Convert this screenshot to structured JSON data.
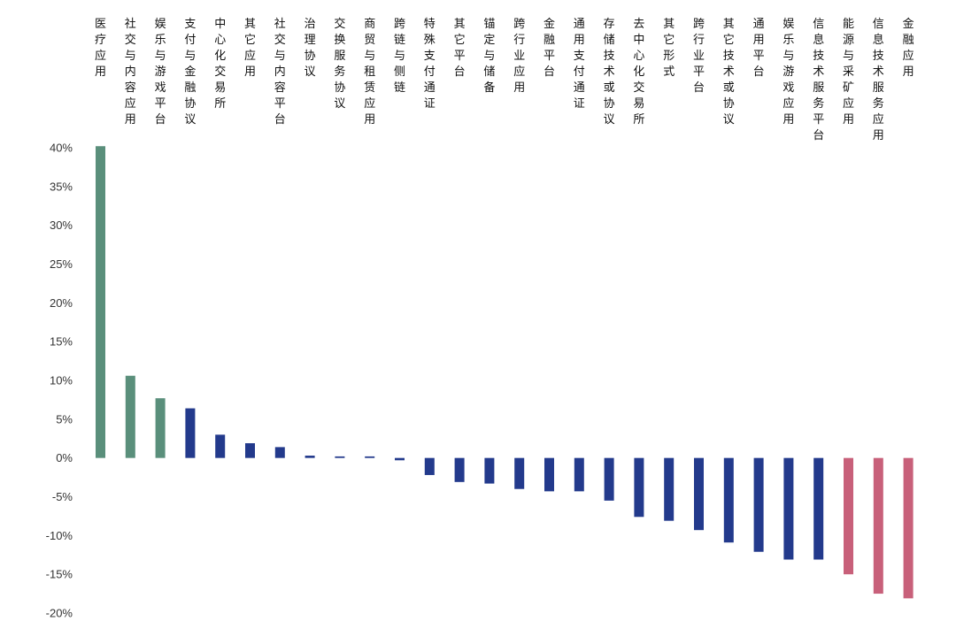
{
  "chart_data": {
    "type": "bar",
    "title": "",
    "xlabel": "",
    "ylabel": "",
    "ylim": [
      -20,
      40
    ],
    "yticks": [
      40,
      35,
      30,
      25,
      20,
      15,
      10,
      5,
      0,
      -5,
      -10,
      -15,
      -20
    ],
    "ytick_labels": [
      "40%",
      "35%",
      "30%",
      "25%",
      "20%",
      "15%",
      "10%",
      "5%",
      "0%",
      "-5%",
      "-10%",
      "-15%",
      "-20%"
    ],
    "categories": [
      "医疗应用",
      "社交与内容应用",
      "娱乐与游戏平台",
      "支付与金融协议",
      "中心化交易所",
      "其它应用",
      "社交与内容平台",
      "治理协议",
      "交换服务协议",
      "商贸与租赁应用",
      "跨链与侧链",
      "特殊支付通证",
      "其它平台",
      "锚定与储备",
      "跨行业应用",
      "金融平台",
      "通用支付通证",
      "存储技术或协议",
      "去中心化交易所",
      "其它形式",
      "跨行业平台",
      "其它技术或协议",
      "通用平台",
      "娱乐与游戏应用",
      "信息技术服务平台",
      "能源与采矿应用",
      "信息技术服务应用",
      "金融应用"
    ],
    "values": [
      40.2,
      10.6,
      7.7,
      6.4,
      3.0,
      1.9,
      1.4,
      0.3,
      0.2,
      0.2,
      -0.3,
      -2.2,
      -3.1,
      -3.3,
      -4.0,
      -4.3,
      -4.3,
      -5.5,
      -7.6,
      -8.1,
      -9.3,
      -10.9,
      -12.1,
      -13.1,
      -13.1,
      -15.0,
      -17.5,
      -18.1
    ],
    "bar_colors": [
      "#5a8f7b",
      "#5a8f7b",
      "#5a8f7b",
      "#233a8c",
      "#233a8c",
      "#233a8c",
      "#233a8c",
      "#233a8c",
      "#233a8c",
      "#233a8c",
      "#233a8c",
      "#233a8c",
      "#233a8c",
      "#233a8c",
      "#233a8c",
      "#233a8c",
      "#233a8c",
      "#233a8c",
      "#233a8c",
      "#233a8c",
      "#233a8c",
      "#233a8c",
      "#233a8c",
      "#233a8c",
      "#233a8c",
      "#c8607a",
      "#c8607a",
      "#c8607a"
    ],
    "grid": false,
    "legend": "none"
  }
}
